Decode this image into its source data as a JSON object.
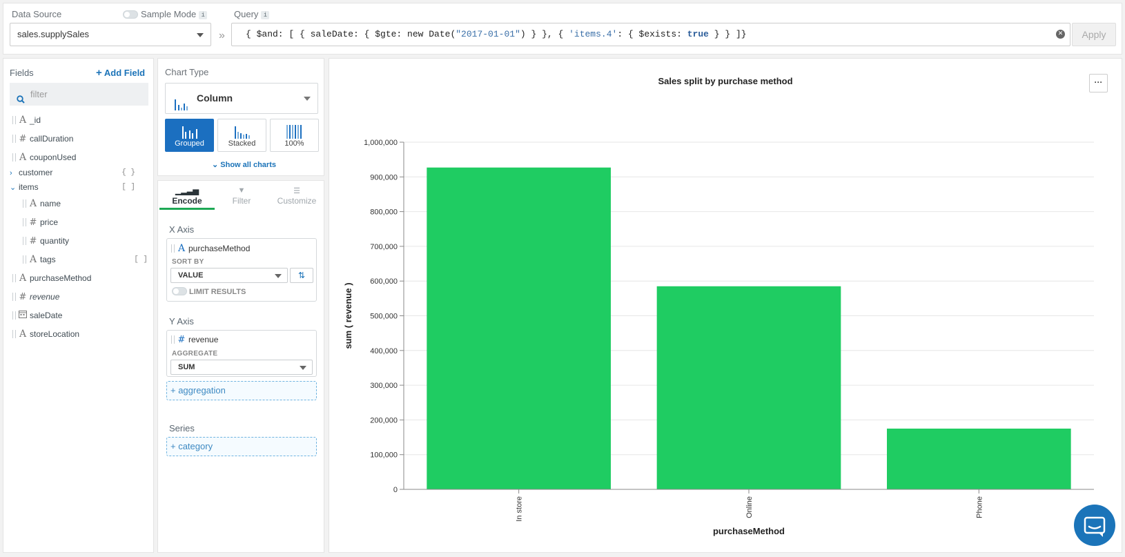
{
  "topbar": {
    "data_source_label": "Data Source",
    "sample_mode_label": "Sample Mode",
    "info_glyph": "i",
    "data_source_value": "sales.supplySales",
    "query_label": "Query",
    "query_text_parts": [
      "{ $and: [ { saleDate: { $gte: new Date(",
      "\"2017-01-01\"",
      ") } }, { ",
      "'items.4'",
      ": { $exists: ",
      "true",
      " } } ]}"
    ],
    "apply_label": "Apply"
  },
  "fields": {
    "title": "Fields",
    "add_field_label": "Add Field",
    "filter_placeholder": "filter",
    "items": [
      {
        "name": "_id",
        "type": "string"
      },
      {
        "name": "callDuration",
        "type": "number"
      },
      {
        "name": "couponUsed",
        "type": "string"
      },
      {
        "name": "customer",
        "type": "object"
      },
      {
        "name": "items",
        "type": "array"
      },
      {
        "name": "name",
        "type": "string"
      },
      {
        "name": "price",
        "type": "number"
      },
      {
        "name": "quantity",
        "type": "number"
      },
      {
        "name": "tags",
        "type": "string"
      },
      {
        "name": "purchaseMethod",
        "type": "string"
      },
      {
        "name": "revenue",
        "type": "number"
      },
      {
        "name": "saleDate",
        "type": "date"
      },
      {
        "name": "storeLocation",
        "type": "string"
      }
    ],
    "object_glyph": "{ }",
    "array_glyph": "[ ]"
  },
  "chart_type": {
    "title": "Chart Type",
    "selected": "Column",
    "options": [
      "Grouped",
      "Stacked",
      "100%"
    ],
    "active_option": "Grouped",
    "show_all_label": "Show all charts"
  },
  "encode": {
    "tabs": [
      "Encode",
      "Filter",
      "Customize"
    ],
    "active_tab": "Encode",
    "x_axis_title": "X Axis",
    "x_field": "purchaseMethod",
    "sort_by_label": "SORT BY",
    "sort_by_value": "VALUE",
    "limit_results_label": "LIMIT RESULTS",
    "y_axis_title": "Y Axis",
    "y_field": "revenue",
    "aggregate_label": "AGGREGATE",
    "aggregate_value": "SUM",
    "add_aggregation_label": "+ aggregation",
    "series_title": "Series",
    "add_category_label": "+ category"
  },
  "chart_menu_label": "···",
  "colors": {
    "accent": "#1b6fc0",
    "bar": "#1fcc62",
    "tab_underline": "#1ea955"
  },
  "chart_data": {
    "type": "bar",
    "title": "Sales split by purchase method",
    "xlabel": "purchaseMethod",
    "ylabel": "sum ( revenue )",
    "categories": [
      "In store",
      "Online",
      "Phone"
    ],
    "values": [
      927000,
      585000,
      175000
    ],
    "ylim": [
      0,
      1000000
    ],
    "yticks": [
      0,
      100000,
      200000,
      300000,
      400000,
      500000,
      600000,
      700000,
      800000,
      900000,
      1000000
    ],
    "ytick_labels": [
      "0",
      "100,000",
      "200,000",
      "300,000",
      "400,000",
      "500,000",
      "600,000",
      "700,000",
      "800,000",
      "900,000",
      "1,000,000"
    ],
    "grid": true,
    "legend": "none"
  }
}
